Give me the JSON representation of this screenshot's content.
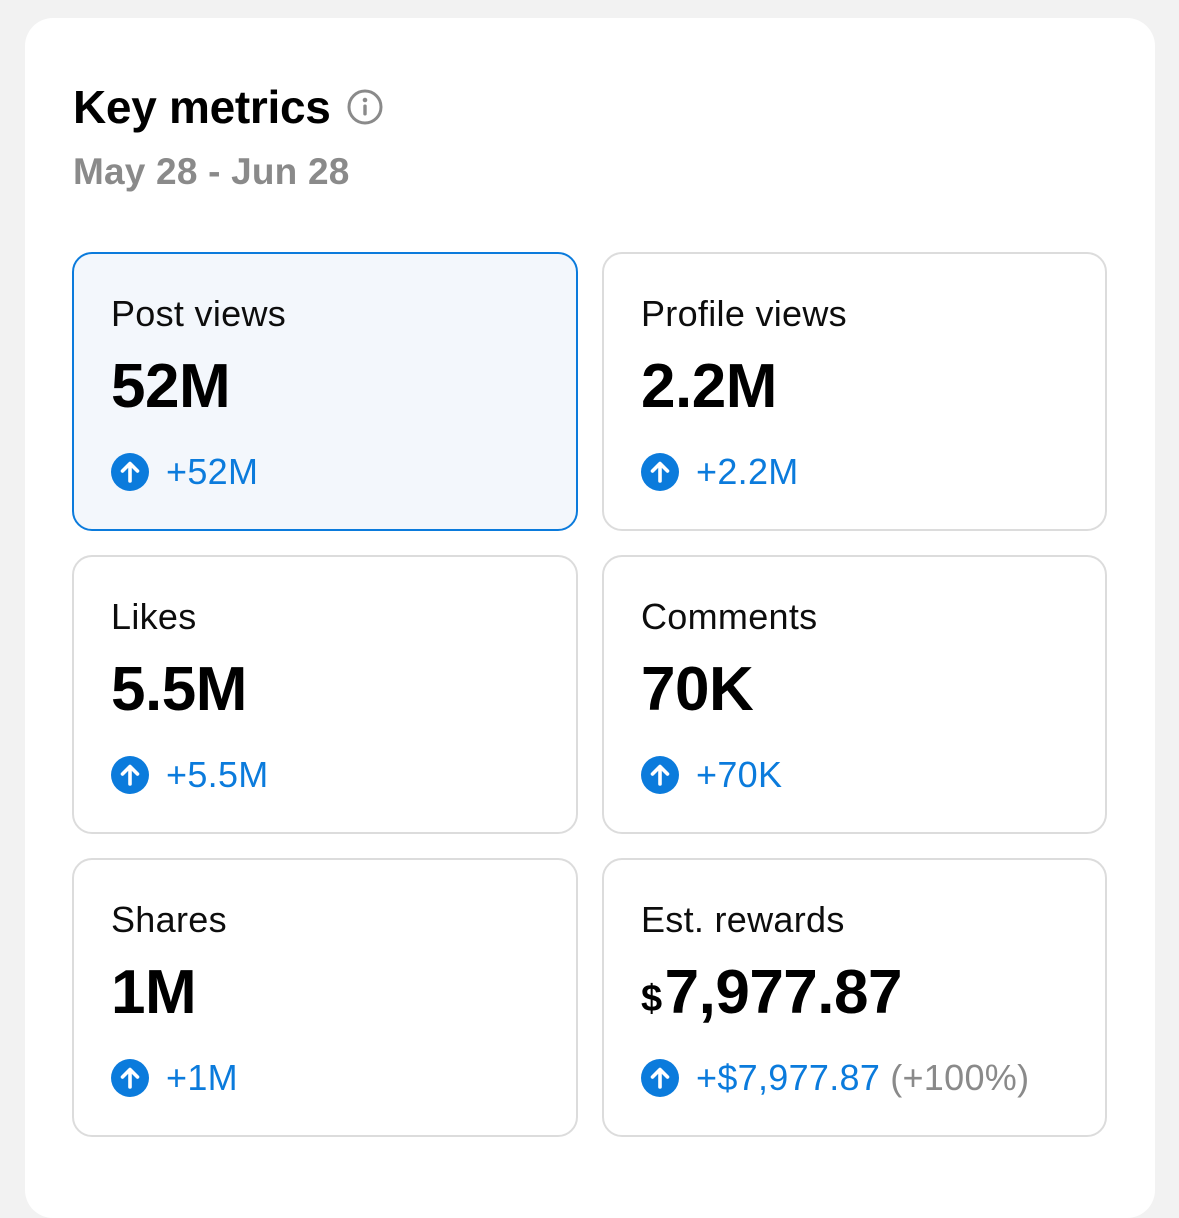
{
  "header": {
    "title": "Key metrics",
    "date_range": "May 28 - Jun 28"
  },
  "colors": {
    "accent": "#0b7bdc",
    "muted": "#8a8a8a",
    "selected_bg": "#f3f7fc",
    "border": "#dcdcdc"
  },
  "metrics": [
    {
      "label": "Post views",
      "value": "52M",
      "delta": "+52M",
      "selected": true
    },
    {
      "label": "Profile views",
      "value": "2.2M",
      "delta": "+2.2M"
    },
    {
      "label": "Likes",
      "value": "5.5M",
      "delta": "+5.5M"
    },
    {
      "label": "Comments",
      "value": "70K",
      "delta": "+70K"
    },
    {
      "label": "Shares",
      "value": "1M",
      "delta": "+1M"
    },
    {
      "label": "Est. rewards",
      "currency": "$",
      "value": "7,977.87",
      "delta": "+$7,977.87",
      "delta_pct": "(+100%)"
    }
  ],
  "icons": {
    "info": "info-icon",
    "trend_up": "arrow-up-circle-icon"
  }
}
